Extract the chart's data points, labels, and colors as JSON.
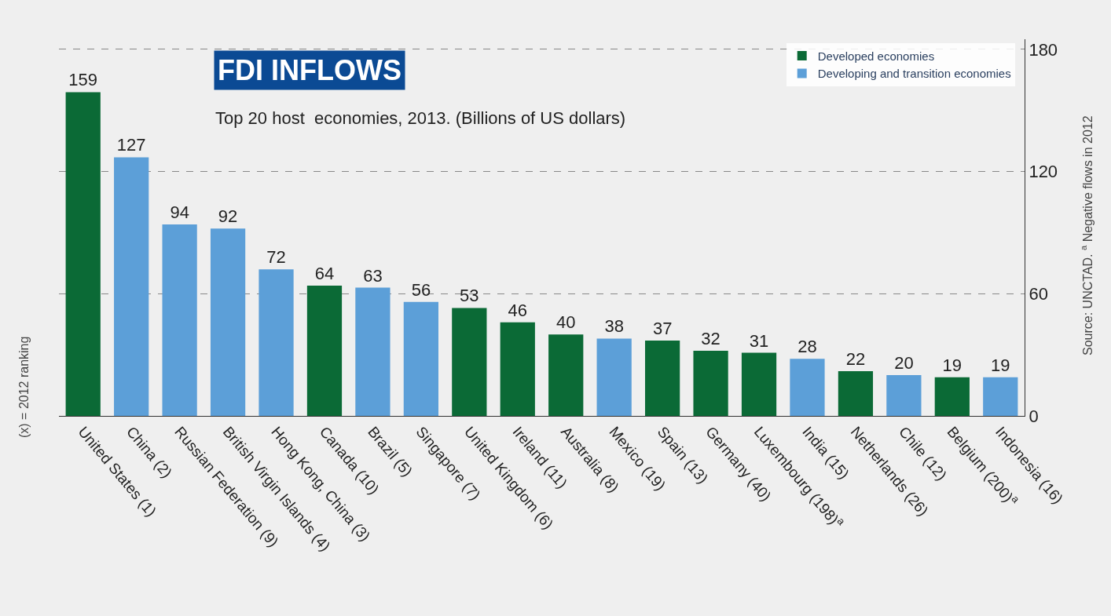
{
  "chart_data": {
    "type": "bar",
    "title": "FDI INFLOWS",
    "subtitle": "Top 20 host  economies, 2013. (Billions of US dollars)",
    "categories": [
      "United States (1)",
      "China (2)",
      "Russian Federation (9)",
      "British Virgin Islands (4)",
      "Hong Kong, China (3)",
      "Canada (10)",
      "Brazil (5)",
      "Singapore (7)",
      "United Kingdom (6)",
      "Ireland (11)",
      "Australia (8)",
      "Mexico (19)",
      "Spain (13)",
      "Germany (40)",
      "Luxembourg (198)$^{a}$",
      "India (15)",
      "Netherlands (26)",
      "Chile (12)",
      "Belgium (200)$^{a}$",
      "Indonesia (16)"
    ],
    "series": [
      {
        "name": "Developed economies",
        "color": "#0b6a36",
        "values": [
          159,
          null,
          null,
          null,
          null,
          64,
          null,
          null,
          53,
          46,
          40,
          null,
          37,
          32,
          31,
          null,
          22,
          null,
          19,
          null
        ]
      },
      {
        "name": "Developing and transition economies",
        "color": "#5c9fd8",
        "values": [
          null,
          127,
          94,
          92,
          72,
          null,
          63,
          56,
          null,
          null,
          null,
          38,
          null,
          null,
          null,
          28,
          null,
          20,
          null,
          19
        ]
      }
    ],
    "ylim": [
      0,
      185
    ],
    "yticks": [
      0,
      60,
      120,
      180
    ],
    "grid": "y",
    "legend": "top right",
    "data_labels": true,
    "annotations": [
      "(x) = 2012 ranking",
      "Source: UNCTAD. $^{a}$ Negative flows in 2012"
    ]
  }
}
